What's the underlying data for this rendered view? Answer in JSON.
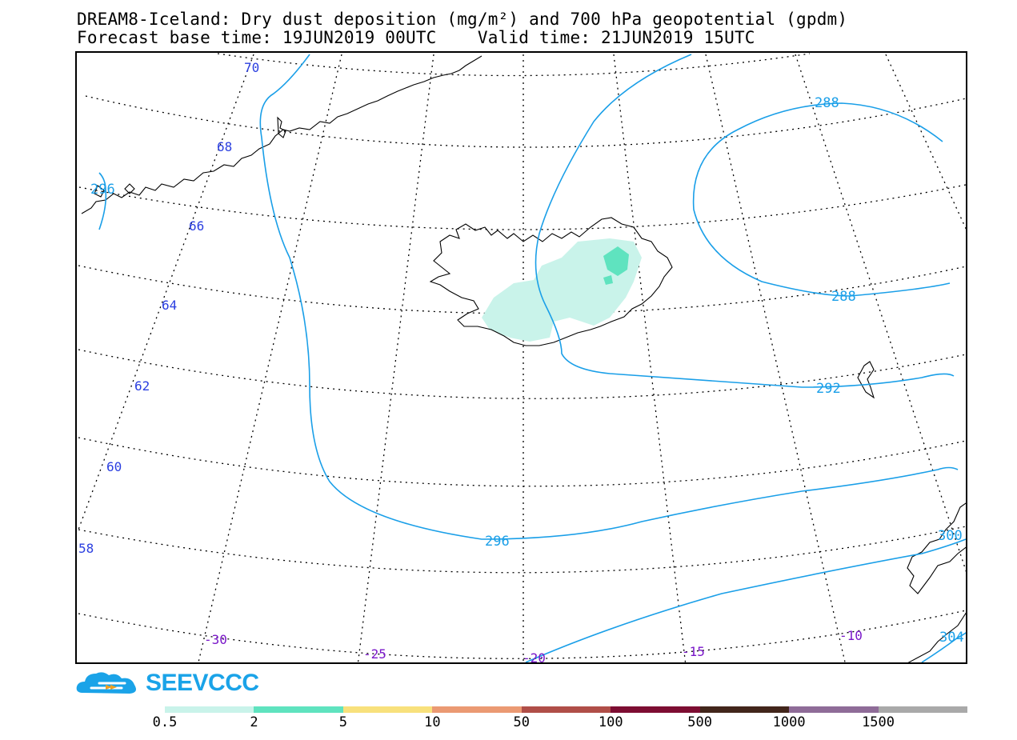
{
  "title": {
    "line1": "DREAM8-Iceland: Dry dust deposition (mg/m²) and 700 hPa geopotential (gpdm)",
    "line2": "Forecast base time: 19JUN2019 00UTC    Valid time: 21JUN2019 15UTC"
  },
  "map": {
    "lat_labels": [
      "70",
      "68",
      "66",
      "64",
      "62",
      "60",
      "58"
    ],
    "lon_labels": [
      "-30",
      "-25",
      "-20",
      "-15",
      "-10"
    ],
    "contour_labels": [
      "288",
      "288",
      "292",
      "296",
      "296",
      "300",
      "304"
    ],
    "contour_color": "#1a9fe8",
    "lat_label_color": "#2b3fe0",
    "lon_label_color": "#7a17c9"
  },
  "logo": {
    "text": "SEEVCCC",
    "icon": "cloud-icon",
    "color": "#1aa3e8"
  },
  "legend": {
    "ticks": [
      "0.5",
      "2",
      "5",
      "10",
      "50",
      "100",
      "500",
      "1000",
      "1500"
    ],
    "colors": [
      "#c9f3ea",
      "#5fe3bf",
      "#f8e17c",
      "#eb9a73",
      "#b04e48",
      "#7d0d32",
      "#42261b",
      "#8f6c98",
      "#a9a9a9"
    ]
  }
}
